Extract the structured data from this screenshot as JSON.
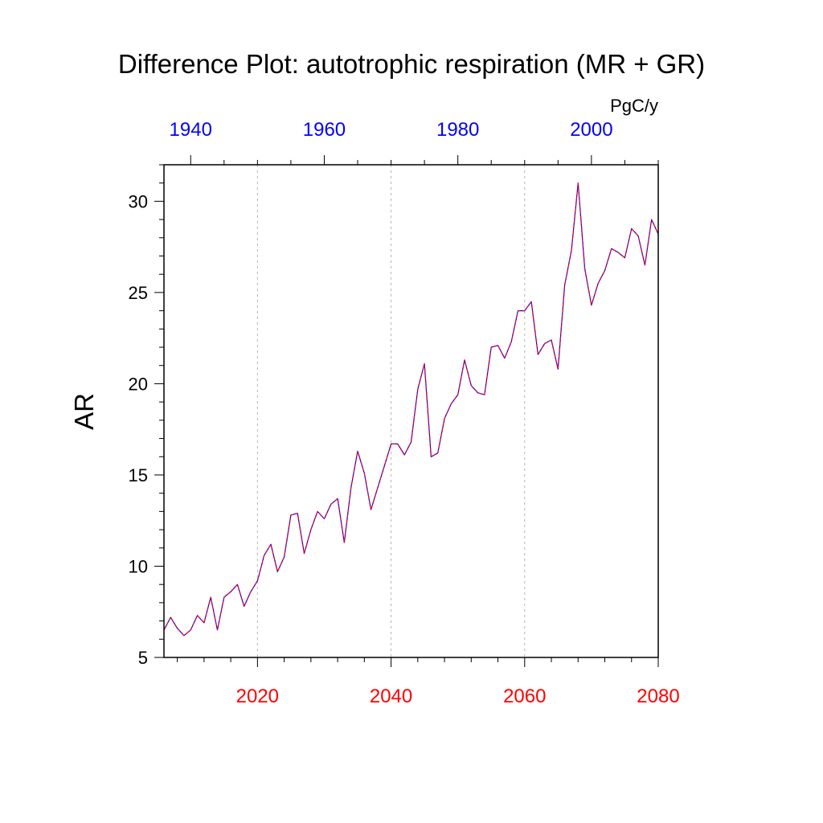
{
  "chart_data": {
    "type": "line",
    "title": "Difference Plot: autotrophic respiration (MR + GR)",
    "ylabel": "AR",
    "units": "PgC/y",
    "xlim": [
      2006,
      2080
    ],
    "ylim": [
      5,
      32
    ],
    "bottom_axis": {
      "ticks": [
        2020,
        2040,
        2060,
        2080
      ],
      "tick_labels": [
        "2020",
        "2040",
        "2060",
        "2080"
      ],
      "color": "#ff0000"
    },
    "top_axis": {
      "ticks": [
        2010,
        2030,
        2050,
        2070
      ],
      "tick_labels": [
        "1940",
        "1960",
        "1980",
        "2000"
      ],
      "color": "#0000ff"
    },
    "yticks": [
      5,
      10,
      15,
      20,
      25,
      30
    ],
    "ytick_labels": [
      "5",
      "10",
      "15",
      "20",
      "25",
      "30"
    ],
    "vertical_gridlines": [
      2020,
      2040,
      2060
    ],
    "x": [
      2006,
      2007,
      2008,
      2009,
      2010,
      2011,
      2012,
      2013,
      2014,
      2015,
      2016,
      2017,
      2018,
      2019,
      2020,
      2021,
      2022,
      2023,
      2024,
      2025,
      2026,
      2027,
      2028,
      2029,
      2030,
      2031,
      2032,
      2033,
      2034,
      2035,
      2036,
      2037,
      2038,
      2039,
      2040,
      2041,
      2042,
      2043,
      2044,
      2045,
      2046,
      2047,
      2048,
      2049,
      2050,
      2051,
      2052,
      2053,
      2054,
      2055,
      2056,
      2057,
      2058,
      2059,
      2060,
      2061,
      2062,
      2063,
      2064,
      2065,
      2066,
      2067,
      2068,
      2069,
      2070,
      2071,
      2072,
      2073,
      2074,
      2075,
      2076,
      2077,
      2078,
      2079,
      2080
    ],
    "series": [
      {
        "name": "AR (blue)",
        "color": "#0000ff",
        "values": [
          6.5,
          7.2,
          6.6,
          6.2,
          6.5,
          7.3,
          6.9,
          8.3,
          6.5,
          8.3,
          8.6,
          9.0,
          7.8,
          8.6,
          9.2,
          10.6,
          11.2,
          9.7,
          10.5,
          12.8,
          12.9,
          10.7,
          12.0,
          13.0,
          12.6,
          13.4,
          13.7,
          11.3,
          14.3,
          16.3,
          15.1,
          13.1,
          14.3,
          15.5,
          16.7,
          16.7,
          16.1,
          16.8,
          19.7,
          21.1,
          16.0,
          16.2,
          18.1,
          18.9,
          19.4,
          21.3,
          19.9,
          19.5,
          19.4,
          22.0,
          22.1,
          21.4,
          22.3,
          24.0,
          24.0,
          24.5,
          21.6,
          22.2,
          22.4,
          20.8,
          25.4,
          27.3,
          31.0,
          26.3,
          24.3,
          25.5,
          26.2,
          27.4,
          27.2,
          26.9,
          28.5,
          28.1,
          26.5,
          29.0,
          28.2
        ]
      },
      {
        "name": "AR (red dashed)",
        "color": "#ff0000",
        "values": [
          6.5,
          7.2,
          6.6,
          6.2,
          6.5,
          7.3,
          6.9,
          8.3,
          6.5,
          8.3,
          8.6,
          9.0,
          7.8,
          8.6,
          9.2,
          10.6,
          11.2,
          9.7,
          10.5,
          12.8,
          12.9,
          10.7,
          12.0,
          13.0,
          12.6,
          13.4,
          13.7,
          11.3,
          14.3,
          16.3,
          15.1,
          13.1,
          14.3,
          15.5,
          16.7,
          16.7,
          16.1,
          16.8,
          19.7,
          21.1,
          16.0,
          16.2,
          18.1,
          18.9,
          19.4,
          21.3,
          19.9,
          19.5,
          19.4,
          22.0,
          22.1,
          21.4,
          22.3,
          24.0,
          24.0,
          24.5,
          21.6,
          22.2,
          22.4,
          20.8,
          25.4,
          27.3,
          31.0,
          26.3,
          24.3,
          25.5,
          26.2,
          27.4,
          27.2,
          26.9,
          28.5,
          28.1,
          26.5,
          29.0,
          28.2
        ]
      }
    ]
  }
}
